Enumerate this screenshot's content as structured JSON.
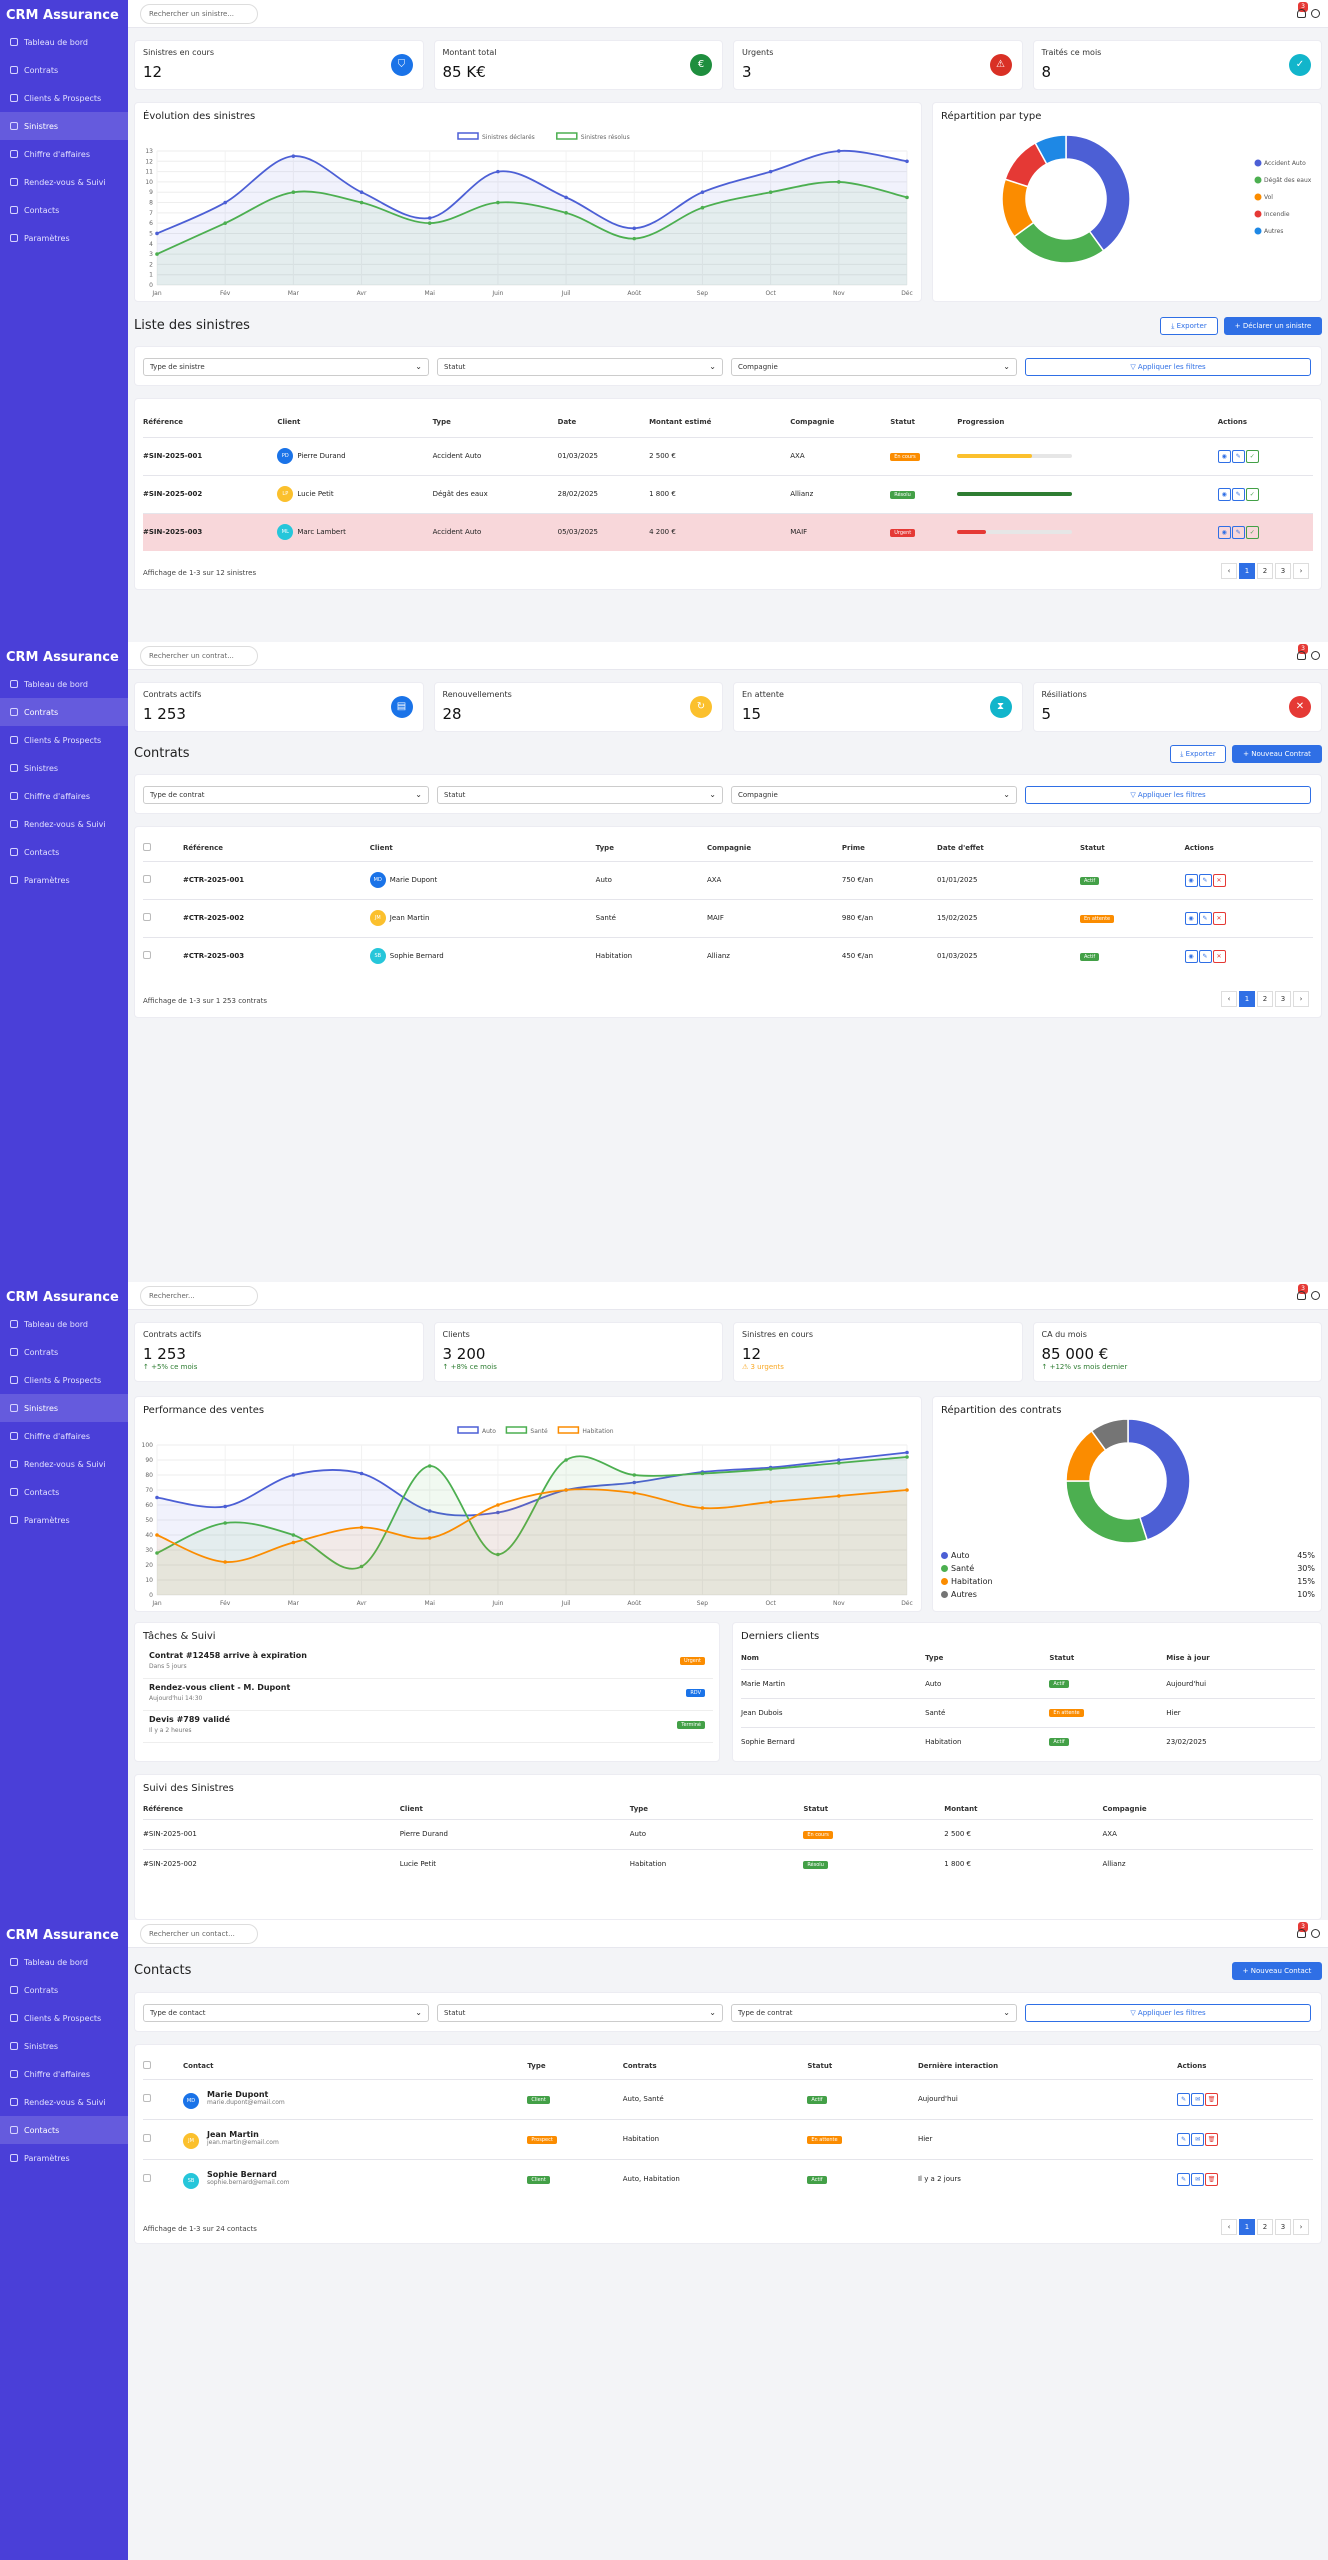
{
  "colors": {
    "accent": "#2f6fe5",
    "sidebar": "#4a3fd8",
    "urgent": "#e53935",
    "success": "#43a047",
    "warning": "#fb8c00"
  },
  "app": {
    "brand": "CRM Assurance"
  },
  "nav": [
    "Tableau de bord",
    "Contrats",
    "Clients & Prospects",
    "Sinistres",
    "Chiffre d'affaires",
    "Rendez-vous & Suivi",
    "Contacts",
    "Paramètres"
  ],
  "notif_count": "3",
  "sinistres": {
    "search_placeholder": "Rechercher un sinistre...",
    "stats": [
      {
        "label": "Sinistres en cours",
        "value": "12",
        "icon": "shield-icon",
        "color": "#1a73e8",
        "glyph": "⛉"
      },
      {
        "label": "Montant total",
        "value": "85 K€",
        "icon": "euro-icon",
        "color": "#1e8e3e",
        "glyph": "€"
      },
      {
        "label": "Urgents",
        "value": "3",
        "icon": "warning-icon",
        "color": "#d93025",
        "glyph": "⚠"
      },
      {
        "label": "Traités ce mois",
        "value": "8",
        "icon": "check-icon",
        "color": "#12b5cb",
        "glyph": "✓"
      }
    ],
    "evolution_title": "Évolution des sinistres",
    "repartition_title": "Répartition par type",
    "list_title": "Liste des sinistres",
    "export_label": "Exporter",
    "declare_label": "+ Déclarer un sinistre",
    "filters": [
      "Type de sinistre",
      "Statut",
      "Compagnie"
    ],
    "apply_label": "Appliquer les filtres",
    "columns": [
      "Référence",
      "Client",
      "Type",
      "Date",
      "Montant estimé",
      "Compagnie",
      "Statut",
      "Progression",
      "Actions"
    ],
    "rows": [
      {
        "ref": "#SIN-2025-001",
        "initials": "PD",
        "av": "#1a73e8",
        "client": "Pierre Durand",
        "type": "Accident Auto",
        "date": "01/03/2025",
        "amount": "2 500 €",
        "company": "AXA",
        "status": "En cours",
        "status_color": "#fb8c00",
        "progress": 0.65,
        "pcolor": "#fbc02d"
      },
      {
        "ref": "#SIN-2025-002",
        "initials": "LP",
        "av": "#fbc02d",
        "client": "Lucie Petit",
        "type": "Dégât des eaux",
        "date": "28/02/2025",
        "amount": "1 800 €",
        "company": "Allianz",
        "status": "Résolu",
        "status_color": "#43a047",
        "progress": 1.0,
        "pcolor": "#2e7d32"
      },
      {
        "ref": "#SIN-2025-003",
        "initials": "ML",
        "av": "#26c6da",
        "client": "Marc Lambert",
        "type": "Accident Auto",
        "date": "05/03/2025",
        "amount": "4 200 €",
        "company": "MAIF",
        "status": "Urgent",
        "status_color": "#e53935",
        "progress": 0.25,
        "pcolor": "#e53935"
      }
    ],
    "footer": "Affichage de 1-3 sur 12 sinistres",
    "pages": [
      "‹",
      "1",
      "2",
      "3",
      "›"
    ],
    "chart": {
      "type": "line",
      "x": [
        "Jan",
        "Fév",
        "Mar",
        "Avr",
        "Mai",
        "Juin",
        "Juil",
        "Août",
        "Sep",
        "Oct",
        "Nov",
        "Déc"
      ],
      "series": [
        {
          "name": "Sinistres déclarés",
          "color": "#4c5fd5",
          "values": [
            5,
            8,
            12.5,
            9,
            6.5,
            11,
            8.5,
            5.5,
            9,
            11,
            13,
            12
          ]
        },
        {
          "name": "Sinistres résolus",
          "color": "#4caf50",
          "values": [
            3,
            6,
            9,
            8,
            6,
            8,
            7,
            4.5,
            7.5,
            9,
            10,
            8.5
          ]
        }
      ],
      "ylim": [
        0,
        13
      ],
      "yticks": [
        "0",
        "1",
        "2",
        "3",
        "4",
        "5",
        "6",
        "7",
        "8",
        "9",
        "10",
        "11",
        "12",
        "13"
      ]
    },
    "donut": {
      "type": "pie",
      "categories": [
        "Accident Auto",
        "Dégât des eaux",
        "Vol",
        "Incendie",
        "Autres"
      ],
      "values": [
        40,
        25,
        15,
        12,
        8
      ],
      "colors": [
        "#4c5fd5",
        "#4caf50",
        "#fb8c00",
        "#e53935",
        "#1e88e5"
      ]
    }
  },
  "contrats": {
    "search_placeholder": "Rechercher un contrat...",
    "stats": [
      {
        "label": "Contrats actifs",
        "value": "1 253",
        "icon": "document-icon",
        "color": "#1a73e8",
        "glyph": "▤"
      },
      {
        "label": "Renouvellements",
        "value": "28",
        "icon": "refresh-icon",
        "color": "#fbc02d",
        "glyph": "↻"
      },
      {
        "label": "En attente",
        "value": "15",
        "icon": "hourglass-icon",
        "color": "#12b5cb",
        "glyph": "⧗"
      },
      {
        "label": "Résiliations",
        "value": "5",
        "icon": "cancel-icon",
        "color": "#e53935",
        "glyph": "✕"
      }
    ],
    "title": "Contrats",
    "export_label": "Exporter",
    "new_label": "+ Nouveau Contrat",
    "filters": [
      "Type de contrat",
      "Statut",
      "Compagnie"
    ],
    "apply_label": "Appliquer les filtres",
    "columns": [
      "Référence",
      "Client",
      "Type",
      "Compagnie",
      "Prime",
      "Date d'effet",
      "Statut",
      "Actions"
    ],
    "rows": [
      {
        "ref": "#CTR-2025-001",
        "initials": "MD",
        "av": "#1a73e8",
        "client": "Marie Dupont",
        "type": "Auto",
        "company": "AXA",
        "prime": "750 €/an",
        "date": "01/01/2025",
        "status": "Actif",
        "status_color": "#43a047"
      },
      {
        "ref": "#CTR-2025-002",
        "initials": "JM",
        "av": "#fbc02d",
        "client": "Jean Martin",
        "type": "Santé",
        "company": "MAIF",
        "prime": "980 €/an",
        "date": "15/02/2025",
        "status": "En attente",
        "status_color": "#fb8c00"
      },
      {
        "ref": "#CTR-2025-003",
        "initials": "SB",
        "av": "#26c6da",
        "client": "Sophie Bernard",
        "type": "Habitation",
        "company": "Allianz",
        "prime": "450 €/an",
        "date": "01/03/2025",
        "status": "Actif",
        "status_color": "#43a047"
      }
    ],
    "footer": "Affichage de 1-3 sur 1 253 contrats",
    "pages": [
      "‹",
      "1",
      "2",
      "3",
      "›"
    ]
  },
  "dashboard": {
    "search_placeholder": "Rechercher...",
    "stats": [
      {
        "label": "Contrats actifs",
        "value": "1 253",
        "sub": "↑ +5% ce mois",
        "sub_color": "#2e7d32"
      },
      {
        "label": "Clients",
        "value": "3 200",
        "sub": "↑ +8% ce mois",
        "sub_color": "#2e7d32"
      },
      {
        "label": "Sinistres en cours",
        "value": "12",
        "sub": "⚠ 3 urgents",
        "sub_color": "#f9a825"
      },
      {
        "label": "CA du mois",
        "value": "85 000 €",
        "sub": "↑ +12% vs mois dernier",
        "sub_color": "#2e7d32"
      }
    ],
    "perf_title": "Performance des ventes",
    "repart_title": "Répartition des contrats",
    "perf_chart": {
      "type": "line",
      "x": [
        "Jan",
        "Fév",
        "Mar",
        "Avr",
        "Mai",
        "Juin",
        "Juil",
        "Août",
        "Sep",
        "Oct",
        "Nov",
        "Déc"
      ],
      "series": [
        {
          "name": "Auto",
          "color": "#4c5fd5",
          "values": [
            65,
            59,
            80,
            81,
            56,
            55,
            70,
            75,
            82,
            85,
            90,
            95
          ]
        },
        {
          "name": "Santé",
          "color": "#4caf50",
          "values": [
            28,
            48,
            40,
            19,
            86,
            27,
            90,
            80,
            81,
            84,
            88,
            92
          ]
        },
        {
          "name": "Habitation",
          "color": "#fb8c00",
          "values": [
            40,
            22,
            35,
            45,
            38,
            60,
            70,
            68,
            58,
            62,
            66,
            70
          ]
        }
      ],
      "ylim": [
        0,
        100
      ],
      "yticks": [
        "0",
        "10",
        "20",
        "30",
        "40",
        "50",
        "60",
        "70",
        "80",
        "90",
        "100"
      ]
    },
    "repart": {
      "type": "pie",
      "categories": [
        "Auto",
        "Santé",
        "Habitation",
        "Autres"
      ],
      "values": [
        45,
        30,
        15,
        10
      ],
      "labels": [
        "45%",
        "30%",
        "15%",
        "10%"
      ],
      "colors": [
        "#4c5fd5",
        "#4caf50",
        "#fb8c00",
        "#757575"
      ]
    },
    "tasks_title": "Tâches & Suivi",
    "tasks": [
      {
        "title": "Contrat #12458 arrive à expiration",
        "sub": "Dans 5 jours",
        "badge": "Urgent",
        "color": "#fb8c00"
      },
      {
        "title": "Rendez-vous client - M. Dupont",
        "sub": "Aujourd'hui 14:30",
        "badge": "RDV",
        "color": "#1a73e8"
      },
      {
        "title": "Devis #789 validé",
        "sub": "Il y a 2 heures",
        "badge": "Terminé",
        "color": "#43a047"
      }
    ],
    "clients_title": "Derniers clients",
    "clients_cols": [
      "Nom",
      "Type",
      "Statut",
      "Mise à jour"
    ],
    "clients": [
      {
        "name": "Marie Martin",
        "type": "Auto",
        "status": "Actif",
        "color": "#43a047",
        "date": "Aujourd'hui"
      },
      {
        "name": "Jean Dubois",
        "type": "Santé",
        "status": "En attente",
        "color": "#fb8c00",
        "date": "Hier"
      },
      {
        "name": "Sophie Bernard",
        "type": "Habitation",
        "status": "Actif",
        "color": "#43a047",
        "date": "23/02/2025"
      }
    ],
    "suivi_title": "Suivi des Sinistres",
    "suivi_cols": [
      "Référence",
      "Client",
      "Type",
      "Statut",
      "Montant",
      "Compagnie"
    ],
    "suivi": [
      {
        "ref": "#SIN-2025-001",
        "client": "Pierre Durand",
        "type": "Auto",
        "status": "En cours",
        "color": "#fb8c00",
        "amount": "2 500 €",
        "company": "AXA"
      },
      {
        "ref": "#SIN-2025-002",
        "client": "Lucie Petit",
        "type": "Habitation",
        "status": "Résolu",
        "color": "#43a047",
        "amount": "1 800 €",
        "company": "Allianz"
      }
    ]
  },
  "contacts": {
    "search_placeholder": "Rechercher un contact...",
    "title": "Contacts",
    "new_label": "+ Nouveau Contact",
    "filters": [
      "Type de contact",
      "Statut",
      "Type de contrat"
    ],
    "apply_label": "Appliquer les filtres",
    "columns": [
      "Contact",
      "Type",
      "Contrats",
      "Statut",
      "Dernière interaction",
      "Actions"
    ],
    "rows": [
      {
        "initials": "MD",
        "av": "#1a73e8",
        "name": "Marie Dupont",
        "email": "marie.dupont@email.com",
        "type": "Client",
        "type_color": "#43a047",
        "contracts": "Auto, Santé",
        "status": "Actif",
        "status_color": "#43a047",
        "last": "Aujourd'hui"
      },
      {
        "initials": "JM",
        "av": "#fbc02d",
        "name": "Jean Martin",
        "email": "jean.martin@email.com",
        "type": "Prospect",
        "type_color": "#fb8c00",
        "contracts": "Habitation",
        "status": "En attente",
        "status_color": "#fb8c00",
        "last": "Hier"
      },
      {
        "initials": "SB",
        "av": "#26c6da",
        "name": "Sophie Bernard",
        "email": "sophie.bernard@email.com",
        "type": "Client",
        "type_color": "#43a047",
        "contracts": "Auto, Habitation",
        "status": "Actif",
        "status_color": "#43a047",
        "last": "Il y a 2 jours"
      }
    ],
    "footer": "Affichage de 1-3 sur 24 contacts",
    "pages": [
      "‹",
      "1",
      "2",
      "3",
      "›"
    ]
  }
}
